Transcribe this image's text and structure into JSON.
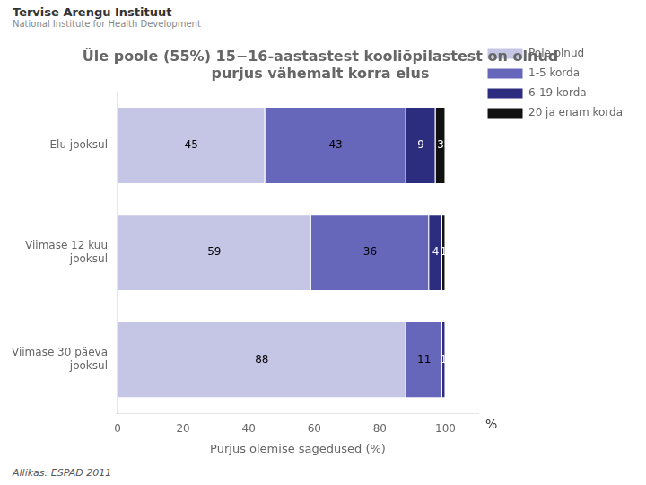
{
  "chart_data": {
    "type": "bar",
    "orientation": "horizontal",
    "stacked": true,
    "title": "Üle poole (55%) 15−16-aastastest kooliõpilastest on olnud\npurjus vähemalt korra elus",
    "categories": [
      "Elu jooksul",
      "Viimase 12 kuu\njooksul",
      "Viimase 30 päeva\njooksul"
    ],
    "series": [
      {
        "name": "Pole olnud",
        "color": "#c5c5e5",
        "values": [
          45,
          59,
          88
        ]
      },
      {
        "name": "1-5 korda",
        "color": "#6666bb",
        "values": [
          43,
          36,
          11
        ]
      },
      {
        "name": "6-19 korda",
        "color": "#2d2d7f",
        "values": [
          9,
          4,
          1
        ]
      },
      {
        "name": "20 ja enam korda",
        "color": "#111111",
        "values": [
          3,
          1,
          0
        ]
      }
    ],
    "xlim": [
      0,
      110
    ],
    "xticks": [
      0,
      20,
      40,
      60,
      80,
      100
    ],
    "xlabel": "Purjus olemise sagedused (%)",
    "annotations": [
      "Tervise Arengu Instituut",
      "National Institute for Health Development",
      "%",
      "Allikas: ESPAD 2011"
    ],
    "data_labels": true,
    "grid": false,
    "legend": "right"
  }
}
